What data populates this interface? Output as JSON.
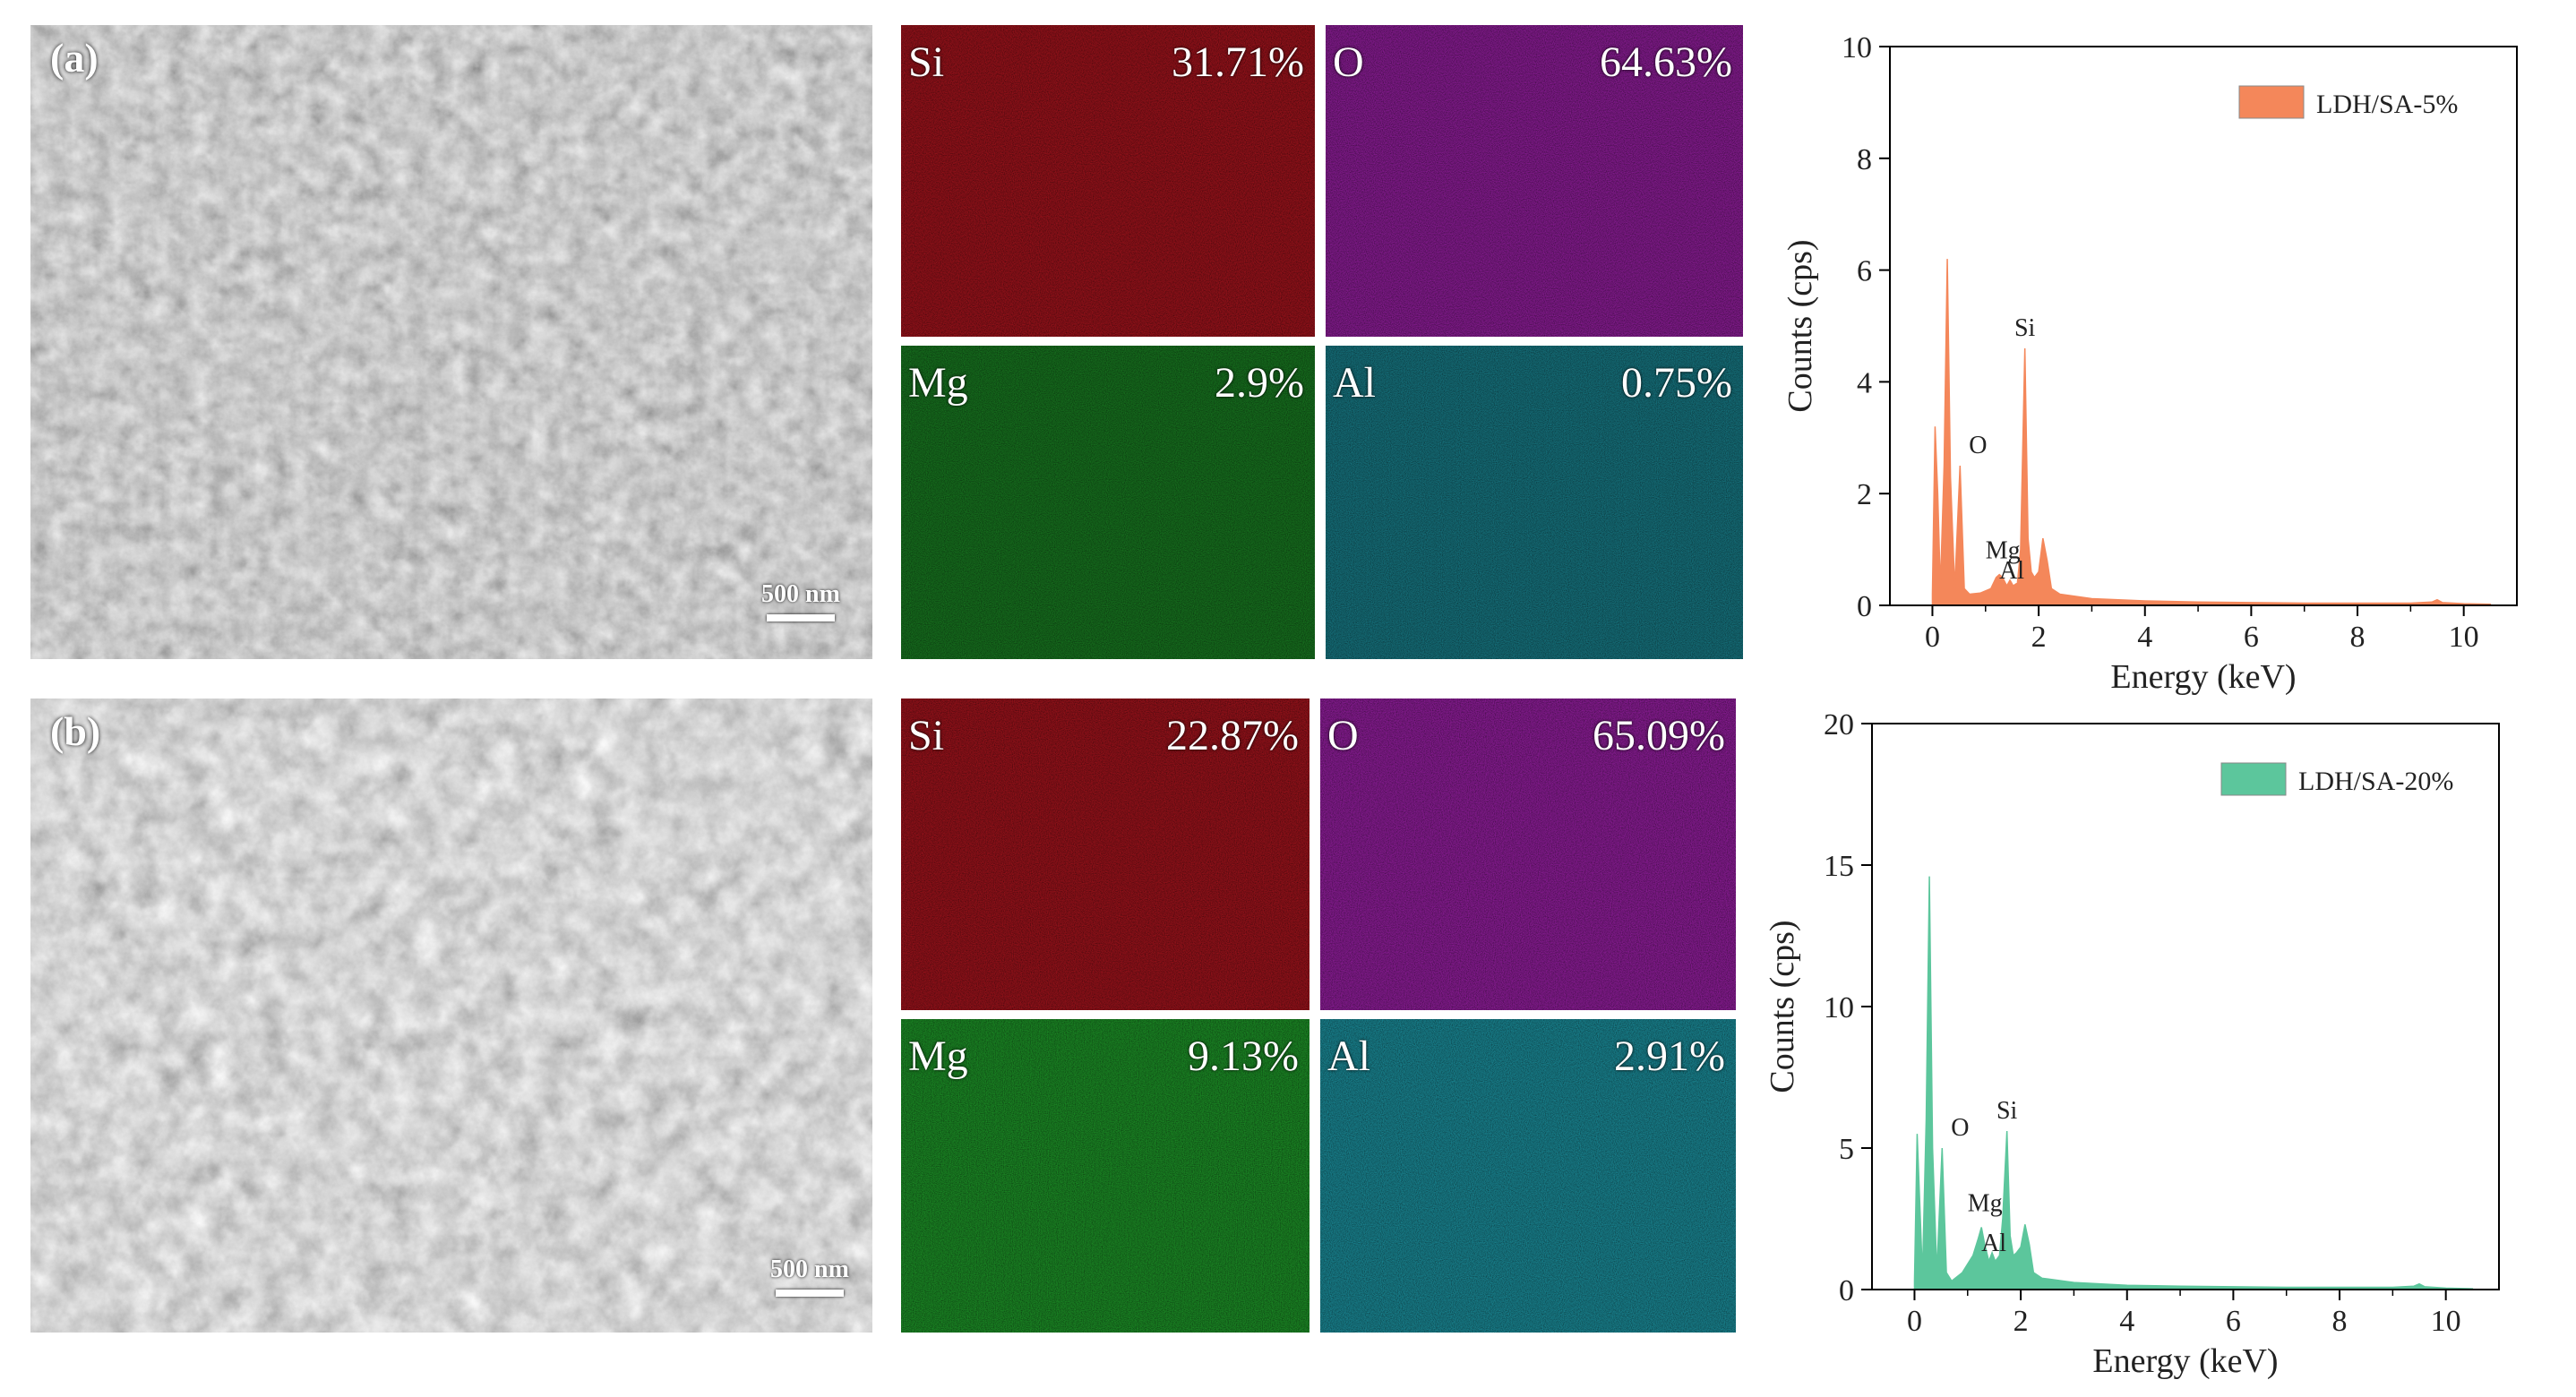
{
  "rows": [
    {
      "id": "a",
      "label": "(a)",
      "scale_bar": "500 nm",
      "maps": [
        {
          "element": "Si",
          "percent": "31.71%",
          "color": "#b0141e"
        },
        {
          "element": "O",
          "percent": "64.63%",
          "color": "#9c1fa8"
        },
        {
          "element": "Mg",
          "percent": "2.9%",
          "color": "#1fa02a"
        },
        {
          "element": "Al",
          "percent": "0.75%",
          "color": "#1fa8b8"
        }
      ]
    },
    {
      "id": "b",
      "label": "(b)",
      "scale_bar": "500 nm",
      "maps": [
        {
          "element": "Si",
          "percent": "22.87%",
          "color": "#b0141e"
        },
        {
          "element": "O",
          "percent": "65.09%",
          "color": "#9c1fa8"
        },
        {
          "element": "Mg",
          "percent": "9.13%",
          "color": "#1fa02a"
        },
        {
          "element": "Al",
          "percent": "2.91%",
          "color": "#1fa8b8"
        }
      ]
    }
  ],
  "chart_data": [
    {
      "type": "area",
      "legend": "LDH/SA-5%",
      "legend_placement": "top-right",
      "color": "#f4875a",
      "xlabel": "Energy (keV)",
      "ylabel": "Counts (cps)",
      "xlim": [
        -0.8,
        11
      ],
      "ylim": [
        0,
        10
      ],
      "xticks": [
        0,
        2,
        4,
        6,
        8,
        10
      ],
      "yticks": [
        0,
        2,
        4,
        6,
        8,
        10
      ],
      "x": [
        0,
        0.05,
        0.1,
        0.15,
        0.22,
        0.28,
        0.34,
        0.42,
        0.52,
        0.6,
        0.7,
        0.9,
        1.1,
        1.2,
        1.26,
        1.32,
        1.4,
        1.46,
        1.52,
        1.6,
        1.66,
        1.74,
        1.8,
        1.86,
        1.92,
        2.0,
        2.08,
        2.16,
        2.24,
        2.4,
        3.0,
        4.0,
        5.0,
        6.0,
        7.0,
        8.0,
        9.0,
        9.4,
        9.5,
        9.6,
        10.0,
        10.5
      ],
      "y": [
        0.2,
        3.2,
        2.0,
        0.3,
        2.5,
        6.2,
        2.3,
        0.3,
        2.5,
        0.3,
        0.2,
        0.22,
        0.3,
        0.5,
        0.55,
        0.5,
        0.35,
        0.45,
        0.35,
        0.4,
        1.0,
        4.6,
        1.2,
        0.6,
        0.5,
        0.6,
        1.2,
        0.8,
        0.3,
        0.2,
        0.12,
        0.08,
        0.06,
        0.05,
        0.04,
        0.04,
        0.04,
        0.06,
        0.1,
        0.05,
        0.03,
        0.02
      ],
      "annotations": [
        {
          "text": "O",
          "x": 0.52,
          "y": 2.5
        },
        {
          "text": "Si",
          "x": 1.74,
          "y": 4.6
        },
        {
          "text": "Mg",
          "x": 1.26,
          "y": 0.55
        },
        {
          "text": "Al",
          "x": 1.46,
          "y": 0.45
        }
      ]
    },
    {
      "type": "area",
      "legend": "LDH/SA-20%",
      "legend_placement": "top-right",
      "color": "#5cc69c",
      "xlabel": "Energy (keV)",
      "ylabel": "Counts (cps)",
      "xlim": [
        -0.8,
        11
      ],
      "ylim": [
        0,
        20
      ],
      "xticks": [
        0,
        2,
        4,
        6,
        8,
        10
      ],
      "yticks": [
        0,
        5,
        10,
        15,
        20
      ],
      "x": [
        0,
        0.05,
        0.1,
        0.15,
        0.22,
        0.28,
        0.34,
        0.42,
        0.52,
        0.6,
        0.7,
        0.9,
        1.1,
        1.2,
        1.26,
        1.32,
        1.4,
        1.46,
        1.52,
        1.6,
        1.66,
        1.74,
        1.8,
        1.86,
        1.92,
        2.0,
        2.08,
        2.16,
        2.24,
        2.4,
        3.0,
        4.0,
        5.0,
        6.0,
        7.0,
        8.0,
        9.0,
        9.4,
        9.5,
        9.6,
        10.0,
        10.5
      ],
      "y": [
        0.3,
        5.5,
        3.0,
        0.5,
        6.0,
        14.6,
        5.0,
        0.6,
        5.0,
        0.6,
        0.3,
        0.6,
        1.2,
        1.8,
        2.2,
        1.6,
        1.0,
        1.3,
        1.0,
        1.2,
        2.5,
        5.6,
        1.9,
        1.2,
        1.3,
        1.5,
        2.3,
        1.6,
        0.6,
        0.4,
        0.25,
        0.15,
        0.12,
        0.1,
        0.08,
        0.08,
        0.08,
        0.12,
        0.2,
        0.1,
        0.05,
        0.03
      ],
      "annotations": [
        {
          "text": "O",
          "x": 0.52,
          "y": 5.0
        },
        {
          "text": "Si",
          "x": 1.74,
          "y": 5.6
        },
        {
          "text": "Mg",
          "x": 1.26,
          "y": 2.2
        },
        {
          "text": "Al",
          "x": 1.46,
          "y": 1.3
        }
      ]
    }
  ]
}
